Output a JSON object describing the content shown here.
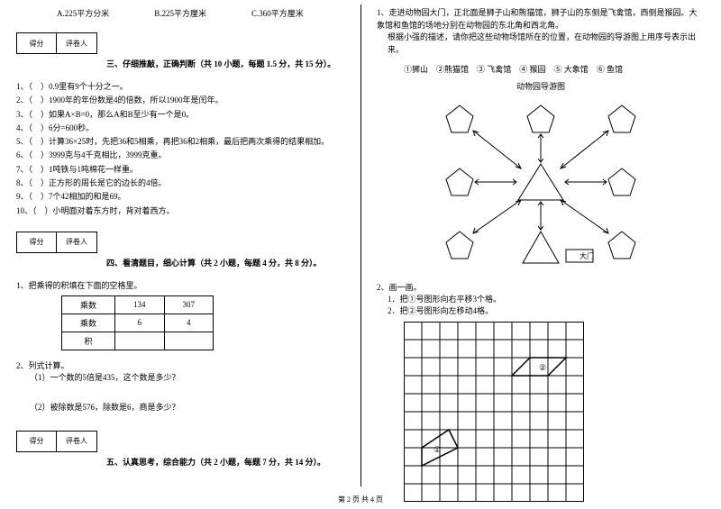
{
  "choices": {
    "a": "A.225平方分米",
    "b": "B.225平方厘米",
    "c": "C.360平方厘米"
  },
  "scorebox": {
    "l": "得分",
    "r": "评卷人"
  },
  "section3": "三、仔细推敲，正确判断（共 10 小题，每题 1.5 分，共 15 分）。",
  "tf": [
    "1、（　）0.9里有9个十分之一。",
    "2、（　）1900年的年份数是4的倍数，所以1900年是闰年。",
    "3、（　）如果A×B=0，那么A和B至少有一个是0。",
    "4、（　）6分=600秒。",
    "5、（　）计算36×25时，先把36和5相乘，再把36和2相乘，最后把两次乘得的结果相加。",
    "6、（　）3999克与4千克相比，3999克重。",
    "7、（　）1吨铁与1吨棉花一样重。",
    "8、（　）正方形的周长是它的边长的4倍。",
    "9、（　）7个42相加的和是69。",
    "10、（　）小明面对着东方时，背对着西方。"
  ],
  "section4": "四、看清题目，细心计算（共 2 小题，每题 4 分，共 8 分）。",
  "q4_1": "1、把乘得的积填在下面的空格里。",
  "table": {
    "h1": "乘数",
    "c11": "134",
    "c12": "307",
    "h2": "乘数",
    "c21": "6",
    "c22": "4",
    "h3": "积",
    "c31": "",
    "c32": ""
  },
  "q4_2": "2、列式计算。",
  "q4_2a": "（1）一个数的5倍是435，这个数是多少？",
  "q4_2b": "（2）被除数是576，除数是6，商是多少？",
  "section5": "五、认真思考，综合能力（共 2 小题，每题 7 分，共 14 分）。",
  "r1": "1、走进动物园大门，正北面是狮子山和熊猫馆，狮子山的东侧是飞禽馆，西侧是猴园。大象馆和鱼馆的场地分别在动物园的东北角和西北角。",
  "r1b": "根据小强的描述，请你把这些动物场馆所在的位置，在动物园的导游图上用序号表示出来。",
  "zoo_labels": "①狮山　②熊猫馆　③ 飞禽馆　④ 猴园　⑤ 大象馆　⑥ 鱼馆",
  "zoo_title": "动物园导游图",
  "gate": "大门",
  "r2": "2、画一画。",
  "r2a": "1．把①号图形向右平移3个格。",
  "r2b": "2．把②号图形向左移动4格。",
  "shape1": "①",
  "shape2": "②",
  "footer": "第 2 页 共 4 页",
  "colors": {
    "line": "#000000",
    "bg": "#ffffff"
  }
}
